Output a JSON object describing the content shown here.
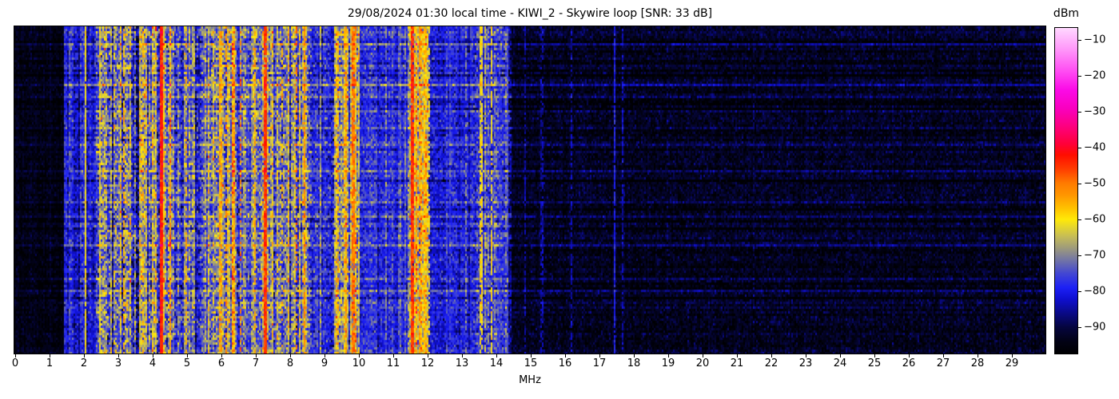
{
  "title": "29/08/2024 01:30 local time - KIWI_2 - Skywire loop [SNR: 33 dB]",
  "xaxis": {
    "label": "MHz",
    "min": 0,
    "max": 30,
    "tick_values": [
      0,
      1,
      2,
      3,
      4,
      5,
      6,
      7,
      8,
      9,
      10,
      11,
      12,
      13,
      14,
      15,
      16,
      17,
      18,
      19,
      20,
      21,
      22,
      23,
      24,
      25,
      26,
      27,
      28,
      29
    ],
    "tick_labels": [
      "0",
      "1",
      "2",
      "3",
      "4",
      "5",
      "6",
      "7",
      "8",
      "9",
      "10",
      "11",
      "12",
      "13",
      "14",
      "15",
      "16",
      "17",
      "18",
      "19",
      "20",
      "21",
      "22",
      "23",
      "24",
      "25",
      "26",
      "27",
      "28",
      "29"
    ]
  },
  "colorbar": {
    "unit": "dBm",
    "vmin": -97.3,
    "vmax": -6.7,
    "tick_values": [
      -10,
      -20,
      -30,
      -40,
      -50,
      -60,
      -70,
      -80,
      -90
    ],
    "tick_labels": [
      "−10",
      "−20",
      "−30",
      "−40",
      "−50",
      "−60",
      "−70",
      "−80",
      "−90"
    ]
  },
  "chart_data": {
    "type": "heatmap",
    "subtype": "radio-spectrum-waterfall",
    "title": "29/08/2024 01:30 local time - KIWI_2 - Skywire loop [SNR: 33 dB]",
    "xlabel": "MHz",
    "x_range": [
      0,
      30
    ],
    "y_axis": "time (vertical, no tick labels shown)",
    "value_unit": "dBm",
    "value_range": [
      -97.3,
      -6.7
    ],
    "snr_db": 33,
    "receiver": "KIWI_2",
    "antenna": "Skywire loop",
    "datetime_local": "29/08/2024 01:30",
    "colormap": [
      [
        -97.3,
        "#000002"
      ],
      [
        -94,
        "#020214"
      ],
      [
        -90,
        "#05053e"
      ],
      [
        -86,
        "#0a0a88"
      ],
      [
        -82,
        "#0f0fd2"
      ],
      [
        -79,
        "#1c20f5"
      ],
      [
        -75,
        "#4347d2"
      ],
      [
        -71,
        "#7678a2"
      ],
      [
        -68,
        "#9d9a7c"
      ],
      [
        -65,
        "#c2b95a"
      ],
      [
        -62,
        "#e6d72c"
      ],
      [
        -60,
        "#ffe908"
      ],
      [
        -57,
        "#ffc300"
      ],
      [
        -53,
        "#ff9400"
      ],
      [
        -50,
        "#ff7c00"
      ],
      [
        -46,
        "#ff3d00"
      ],
      [
        -42,
        "#ff0d00"
      ],
      [
        -39,
        "#ff0038"
      ],
      [
        -34,
        "#fd0080"
      ],
      [
        -29,
        "#f900c0"
      ],
      [
        -24,
        "#fb0ae6"
      ],
      [
        -19,
        "#ff49f2"
      ],
      [
        -13,
        "#ff93f9"
      ],
      [
        -8,
        "#ffc9fe"
      ],
      [
        -6.7,
        "#ffd9ff"
      ]
    ],
    "noise_floor_dbm": -93.5,
    "bands": [
      {
        "range": [
          0.0,
          1.45
        ],
        "base": -94.5,
        "col_var": 0.8,
        "noise": 1.9,
        "row_sens": 0.5,
        "hot": false
      },
      {
        "range": [
          1.45,
          2.35
        ],
        "base": -81,
        "col_var": 2.5,
        "noise": 3.5,
        "row_sens": 1.0,
        "hot": false
      },
      {
        "range": [
          2.35,
          4.55
        ],
        "base": -70,
        "col_var": 7.0,
        "noise": 6.0,
        "row_sens": 1.0,
        "hot": true
      },
      {
        "range": [
          4.55,
          5.65
        ],
        "base": -74.5,
        "col_var": 5.0,
        "noise": 5.0,
        "row_sens": 1.0,
        "hot": false
      },
      {
        "range": [
          5.65,
          6.45
        ],
        "base": -65.5,
        "col_var": 6.0,
        "noise": 5.5,
        "row_sens": 1.0,
        "hot": true
      },
      {
        "range": [
          6.45,
          7.05
        ],
        "base": -73.5,
        "col_var": 5.0,
        "noise": 5.0,
        "row_sens": 1.0,
        "hot": false
      },
      {
        "range": [
          7.05,
          7.55
        ],
        "base": -67,
        "col_var": 6.0,
        "noise": 5.5,
        "row_sens": 1.0,
        "hot": true
      },
      {
        "range": [
          7.55,
          8.65
        ],
        "base": -73,
        "col_var": 6.0,
        "noise": 5.5,
        "row_sens": 1.0,
        "hot": false
      },
      {
        "range": [
          8.65,
          9.25
        ],
        "base": -78.5,
        "col_var": 4.0,
        "noise": 4.0,
        "row_sens": 1.0,
        "hot": false
      },
      {
        "range": [
          9.25,
          10.05
        ],
        "base": -66.5,
        "col_var": 6.0,
        "noise": 5.5,
        "row_sens": 1.0,
        "hot": true
      },
      {
        "range": [
          10.05,
          11.45
        ],
        "base": -78,
        "col_var": 2.5,
        "noise": 3.5,
        "row_sens": 1.0,
        "hot": false
      },
      {
        "range": [
          11.45,
          12.05
        ],
        "base": -63,
        "col_var": 5.0,
        "noise": 5.5,
        "row_sens": 1.0,
        "hot": true
      },
      {
        "range": [
          12.05,
          13.35
        ],
        "base": -80,
        "col_var": 2.5,
        "noise": 3.5,
        "row_sens": 1.0,
        "hot": false
      },
      {
        "range": [
          13.35,
          14.45
        ],
        "base": -77.5,
        "col_var": 4.5,
        "noise": 4.5,
        "row_sens": 1.0,
        "hot": false
      },
      {
        "range": [
          14.45,
          30.0
        ],
        "base": -93.2,
        "col_var": 0.7,
        "noise": 2.6,
        "row_sens": 0.9,
        "hot": false
      }
    ],
    "carriers": [
      {
        "f": 1.62,
        "level": -72,
        "duty": 0.5
      },
      {
        "f": 2.07,
        "level": -61,
        "duty": 0.9
      },
      {
        "f": 2.5,
        "level": -62,
        "duty": 0.7
      },
      {
        "f": 3.2,
        "level": -56,
        "duty": 0.6
      },
      {
        "f": 3.75,
        "level": -57,
        "duty": 0.5
      },
      {
        "f": 4.27,
        "level": -43,
        "duty": 1.0,
        "hw": 0.05
      },
      {
        "f": 5.0,
        "level": -55,
        "duty": 0.5
      },
      {
        "f": 6.0,
        "level": -54,
        "duty": 0.7
      },
      {
        "f": 6.18,
        "level": -53,
        "duty": 0.5
      },
      {
        "f": 6.6,
        "level": -49,
        "duty": 0.45
      },
      {
        "f": 7.0,
        "level": -55,
        "duty": 0.6
      },
      {
        "f": 7.29,
        "level": -45,
        "duty": 0.95,
        "hw": 0.05
      },
      {
        "f": 7.8,
        "level": -56,
        "duty": 0.4
      },
      {
        "f": 8.23,
        "level": -50,
        "duty": 0.35
      },
      {
        "f": 8.45,
        "level": -52,
        "duty": 0.8
      },
      {
        "f": 9.4,
        "level": -55,
        "duty": 0.5
      },
      {
        "f": 9.65,
        "level": -54,
        "duty": 0.6
      },
      {
        "f": 9.86,
        "level": -50,
        "duty": 0.85
      },
      {
        "f": 11.0,
        "level": -72,
        "duty": 0.5
      },
      {
        "f": 11.6,
        "level": -45,
        "duty": 0.95,
        "hw": 0.05
      },
      {
        "f": 11.77,
        "level": -53,
        "duty": 0.7
      },
      {
        "f": 11.93,
        "level": -57,
        "duty": 0.6
      },
      {
        "f": 12.07,
        "level": -62,
        "duty": 0.5
      },
      {
        "f": 12.67,
        "level": -76,
        "duty": 0.7
      },
      {
        "f": 12.87,
        "level": -77,
        "duty": 0.7
      },
      {
        "f": 13.15,
        "level": -70,
        "duty": 0.6
      },
      {
        "f": 13.58,
        "level": -60,
        "duty": 0.8
      },
      {
        "f": 13.7,
        "level": -65,
        "duty": 0.5
      },
      {
        "f": 13.88,
        "level": -60,
        "duty": 0.8
      },
      {
        "f": 14.12,
        "level": -76,
        "duty": 0.8
      },
      {
        "f": 14.35,
        "level": -74,
        "duty": 0.7
      },
      {
        "f": 14.85,
        "level": -85,
        "duty": 0.6
      },
      {
        "f": 15.35,
        "level": -84,
        "duty": 0.6
      },
      {
        "f": 16.2,
        "level": -84,
        "duty": 0.6
      },
      {
        "f": 17.45,
        "level": -79,
        "duty": 0.9
      },
      {
        "f": 17.7,
        "level": -83,
        "duty": 0.6
      },
      {
        "f": 19.0,
        "level": -89,
        "duty": 0.5
      },
      {
        "f": 21.5,
        "level": -88,
        "duty": 0.5
      }
    ],
    "row_bursts": {
      "probability": 0.09,
      "gain_db": [
        3,
        8
      ]
    }
  }
}
